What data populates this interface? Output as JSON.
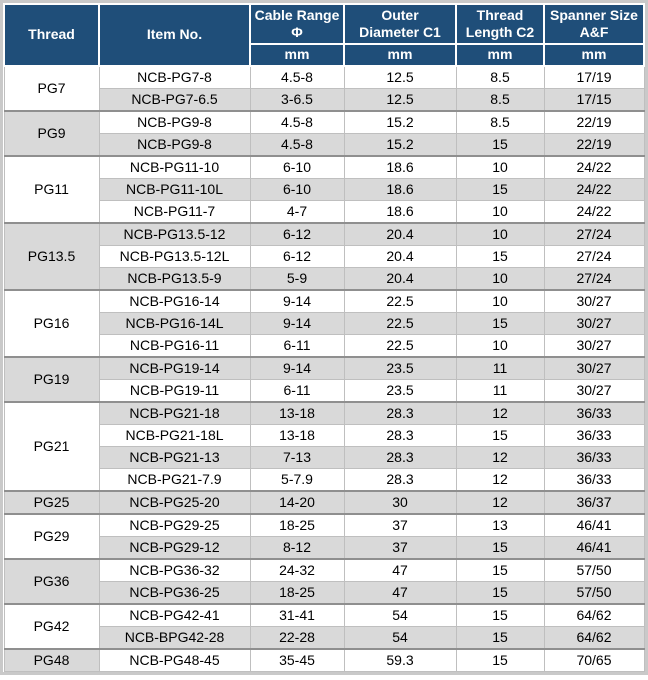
{
  "colors": {
    "header_bg": "#1f4e79",
    "header_text": "#ffffff",
    "row_white_bg": "#ffffff",
    "row_gray_bg": "#d9d9d9",
    "grid_light": "#bfbfbf",
    "group_divider": "#8f8f8f",
    "outer_frame": "#c9c9c9",
    "body_text": "#000000"
  },
  "table": {
    "columns": [
      {
        "label": "Thread",
        "unit": null
      },
      {
        "label": "Item No.",
        "unit": null
      },
      {
        "label": "Cable Range\nΦ",
        "unit": "mm"
      },
      {
        "label": "Outer\nDiameter C1",
        "unit": "mm"
      },
      {
        "label": "Thread\nLength C2",
        "unit": "mm"
      },
      {
        "label": "Spanner Size\nA&F",
        "unit": "mm"
      }
    ],
    "groups": [
      {
        "thread": "PG7",
        "rows": [
          {
            "item": "NCB-PG7-8",
            "cable_range": "4.5-8",
            "outer_diameter": "12.5",
            "thread_length": "8.5",
            "spanner": "17/19"
          },
          {
            "item": "NCB-PG7-6.5",
            "cable_range": "3-6.5",
            "outer_diameter": "12.5",
            "thread_length": "8.5",
            "spanner": "17/15"
          }
        ]
      },
      {
        "thread": "PG9",
        "rows": [
          {
            "item": "NCB-PG9-8",
            "cable_range": "4.5-8",
            "outer_diameter": "15.2",
            "thread_length": "8.5",
            "spanner": "22/19"
          },
          {
            "item": "NCB-PG9-8",
            "cable_range": "4.5-8",
            "outer_diameter": "15.2",
            "thread_length": "15",
            "spanner": "22/19"
          }
        ]
      },
      {
        "thread": "PG11",
        "rows": [
          {
            "item": "NCB-PG11-10",
            "cable_range": "6-10",
            "outer_diameter": "18.6",
            "thread_length": "10",
            "spanner": "24/22"
          },
          {
            "item": "NCB-PG11-10L",
            "cable_range": "6-10",
            "outer_diameter": "18.6",
            "thread_length": "15",
            "spanner": "24/22"
          },
          {
            "item": "NCB-PG11-7",
            "cable_range": "4-7",
            "outer_diameter": "18.6",
            "thread_length": "10",
            "spanner": "24/22"
          }
        ]
      },
      {
        "thread": "PG13.5",
        "rows": [
          {
            "item": "NCB-PG13.5-12",
            "cable_range": "6-12",
            "outer_diameter": "20.4",
            "thread_length": "10",
            "spanner": "27/24"
          },
          {
            "item": "NCB-PG13.5-12L",
            "cable_range": "6-12",
            "outer_diameter": "20.4",
            "thread_length": "15",
            "spanner": "27/24"
          },
          {
            "item": "NCB-PG13.5-9",
            "cable_range": "5-9",
            "outer_diameter": "20.4",
            "thread_length": "10",
            "spanner": "27/24"
          }
        ]
      },
      {
        "thread": "PG16",
        "rows": [
          {
            "item": "NCB-PG16-14",
            "cable_range": "9-14",
            "outer_diameter": "22.5",
            "thread_length": "10",
            "spanner": "30/27"
          },
          {
            "item": "NCB-PG16-14L",
            "cable_range": "9-14",
            "outer_diameter": "22.5",
            "thread_length": "15",
            "spanner": "30/27"
          },
          {
            "item": "NCB-PG16-11",
            "cable_range": "6-11",
            "outer_diameter": "22.5",
            "thread_length": "10",
            "spanner": "30/27"
          }
        ]
      },
      {
        "thread": "PG19",
        "rows": [
          {
            "item": "NCB-PG19-14",
            "cable_range": "9-14",
            "outer_diameter": "23.5",
            "thread_length": "11",
            "spanner": "30/27"
          },
          {
            "item": "NCB-PG19-11",
            "cable_range": "6-11",
            "outer_diameter": "23.5",
            "thread_length": "11",
            "spanner": "30/27"
          }
        ]
      },
      {
        "thread": "PG21",
        "rows": [
          {
            "item": "NCB-PG21-18",
            "cable_range": "13-18",
            "outer_diameter": "28.3",
            "thread_length": "12",
            "spanner": "36/33"
          },
          {
            "item": "NCB-PG21-18L",
            "cable_range": "13-18",
            "outer_diameter": "28.3",
            "thread_length": "15",
            "spanner": "36/33"
          },
          {
            "item": "NCB-PG21-13",
            "cable_range": "7-13",
            "outer_diameter": "28.3",
            "thread_length": "12",
            "spanner": "36/33"
          },
          {
            "item": "NCB-PG21-7.9",
            "cable_range": "5-7.9",
            "outer_diameter": "28.3",
            "thread_length": "12",
            "spanner": "36/33"
          }
        ]
      },
      {
        "thread": "PG25",
        "rows": [
          {
            "item": "NCB-PG25-20",
            "cable_range": "14-20",
            "outer_diameter": "30",
            "thread_length": "12",
            "spanner": "36/37"
          }
        ]
      },
      {
        "thread": "PG29",
        "rows": [
          {
            "item": "NCB-PG29-25",
            "cable_range": "18-25",
            "outer_diameter": "37",
            "thread_length": "13",
            "spanner": "46/41"
          },
          {
            "item": "NCB-PG29-12",
            "cable_range": "8-12",
            "outer_diameter": "37",
            "thread_length": "15",
            "spanner": "46/41"
          }
        ]
      },
      {
        "thread": "PG36",
        "rows": [
          {
            "item": "NCB-PG36-32",
            "cable_range": "24-32",
            "outer_diameter": "47",
            "thread_length": "15",
            "spanner": "57/50"
          },
          {
            "item": "NCB-PG36-25",
            "cable_range": "18-25",
            "outer_diameter": "47",
            "thread_length": "15",
            "spanner": "57/50"
          }
        ]
      },
      {
        "thread": "PG42",
        "rows": [
          {
            "item": "NCB-PG42-41",
            "cable_range": "31-41",
            "outer_diameter": "54",
            "thread_length": "15",
            "spanner": "64/62"
          },
          {
            "item": "NCB-BPG42-28",
            "cable_range": "22-28",
            "outer_diameter": "54",
            "thread_length": "15",
            "spanner": "64/62"
          }
        ]
      },
      {
        "thread": "PG48",
        "rows": [
          {
            "item": "NCB-PG48-45",
            "cable_range": "35-45",
            "outer_diameter": "59.3",
            "thread_length": "15",
            "spanner": "70/65"
          }
        ]
      }
    ]
  }
}
